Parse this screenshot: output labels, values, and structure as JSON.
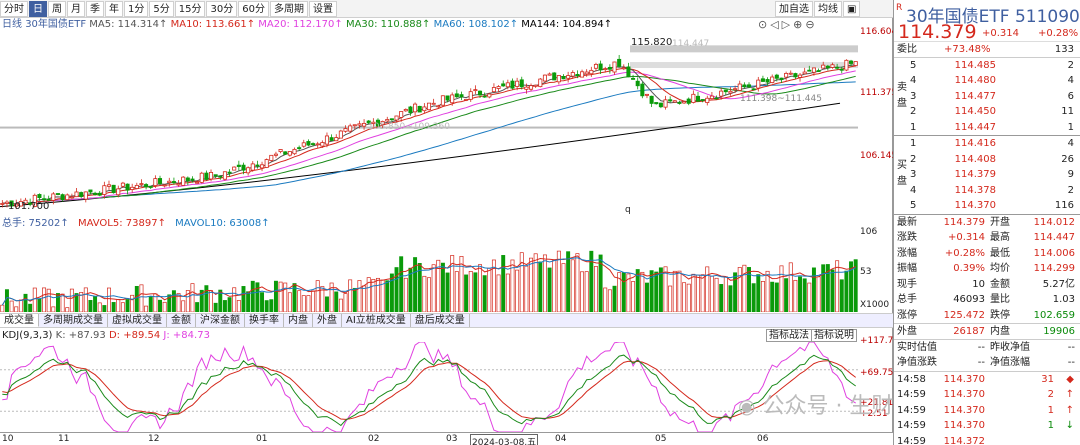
{
  "toolbar": {
    "items": [
      "分时",
      "日",
      "周",
      "月",
      "季",
      "年",
      "1分",
      "5分",
      "15分",
      "30分",
      "60分",
      "多周期",
      "设置"
    ],
    "active_index": 1,
    "right": [
      "加自选",
      "均线",
      "▣"
    ]
  },
  "indicators": {
    "prefix": "日线",
    "name": "30年国债ETF",
    "ma5": "MA5: 114.314↑",
    "ma10": "MA10: 113.661↑",
    "ma20": "MA20: 112.170↑",
    "ma30": "MA30: 110.888↑",
    "ma60": "MA60: 108.102↑",
    "ma144": "MA144: 104.894↑"
  },
  "price_axis": [
    "116.604",
    "111.375",
    "106.145"
  ],
  "annotations": {
    "high": "115.820",
    "high2": "114.447",
    "low": "101.700",
    "range1": "105.850~109.360",
    "range2": "111.398~111.445",
    "q": "q"
  },
  "volume": {
    "total": "总手: 75202↑",
    "mavol5": "MAVOL5: 73897↑",
    "mavol10": "MAVOL10: 63008↑",
    "axis": [
      "106",
      "53",
      "X1000"
    ]
  },
  "tabs": [
    "成交量",
    "多周期成交量",
    "虚拟成交量",
    "金额",
    "沪深金额",
    "换手率",
    "内盘",
    "外盘",
    "AI立桩成交量",
    "盘后成交量"
  ],
  "kdj": {
    "label": "KDJ(9,3,3)",
    "k": "K: +87.93",
    "d": "D: +89.54",
    "j": "J: +84.73",
    "btn1": "指标战法",
    "btn2": "指标说明",
    "axis": [
      "+117.7",
      "+69.75",
      "+21.81",
      "+2.51"
    ]
  },
  "xaxis": [
    "10",
    "11",
    "12",
    "01",
    "02",
    "03",
    "2024-03-08,五",
    "04",
    "05",
    "06"
  ],
  "watermark": "公众号 · 生财分销",
  "quote": {
    "title": "30年国债ETF 511090",
    "price": "114.379",
    "change": "+0.314",
    "pct": "+0.28%",
    "weibi": {
      "label": "委比",
      "val": "+73.48%",
      "num": "133"
    },
    "sell": [
      {
        "lvl": "5",
        "p": "114.485",
        "v": "2"
      },
      {
        "lvl": "4",
        "p": "114.480",
        "v": "4"
      },
      {
        "lvl": "3",
        "p": "114.477",
        "v": "6"
      },
      {
        "lvl": "2",
        "p": "114.450",
        "v": "11"
      },
      {
        "lvl": "1",
        "p": "114.447",
        "v": "1"
      }
    ],
    "buy": [
      {
        "lvl": "1",
        "p": "114.416",
        "v": "4"
      },
      {
        "lvl": "2",
        "p": "114.408",
        "v": "26"
      },
      {
        "lvl": "3",
        "p": "114.379",
        "v": "9"
      },
      {
        "lvl": "4",
        "p": "114.378",
        "v": "2"
      },
      {
        "lvl": "5",
        "p": "114.370",
        "v": "116"
      }
    ],
    "sell_label": "卖盘",
    "buy_label": "买盘",
    "stats": [
      {
        "l1": "最新",
        "v1": "114.379",
        "l2": "开盘",
        "v2": "114.012"
      },
      {
        "l1": "涨跌",
        "v1": "+0.314",
        "l2": "最高",
        "v2": "114.447"
      },
      {
        "l1": "涨幅",
        "v1": "+0.28%",
        "l2": "最低",
        "v2": "114.006"
      },
      {
        "l1": "振幅",
        "v1": "0.39%",
        "l2": "均价",
        "v2": "114.299"
      },
      {
        "l1": "现手",
        "v1": "10",
        "l2": "金额",
        "v2": "5.27亿"
      },
      {
        "l1": "总手",
        "v1": "46093",
        "l2": "量比",
        "v2": "1.03"
      },
      {
        "l1": "涨停",
        "v1": "125.472",
        "l2": "跌停",
        "v2": "102.659"
      }
    ],
    "outer": {
      "l1": "外盘",
      "v1": "26187",
      "l2": "内盘",
      "v2": "19906"
    },
    "nav": [
      {
        "l1": "实时估值",
        "v1": "--",
        "l2": "昨收净值",
        "v2": "--"
      },
      {
        "l1": "净值涨跌",
        "v1": "--",
        "l2": "净值涨幅",
        "v2": "--"
      }
    ],
    "ticks": [
      {
        "t": "14:58",
        "p": "114.370",
        "v": "31",
        "d": "◆"
      },
      {
        "t": "14:59",
        "p": "114.370",
        "v": "2",
        "d": "↑"
      },
      {
        "t": "14:59",
        "p": "114.370",
        "v": "1",
        "d": "↑"
      },
      {
        "t": "14:59",
        "p": "114.370",
        "v": "1",
        "d": "↓"
      },
      {
        "t": "14:59",
        "p": "114.372",
        "v": "",
        "d": ""
      }
    ]
  }
}
